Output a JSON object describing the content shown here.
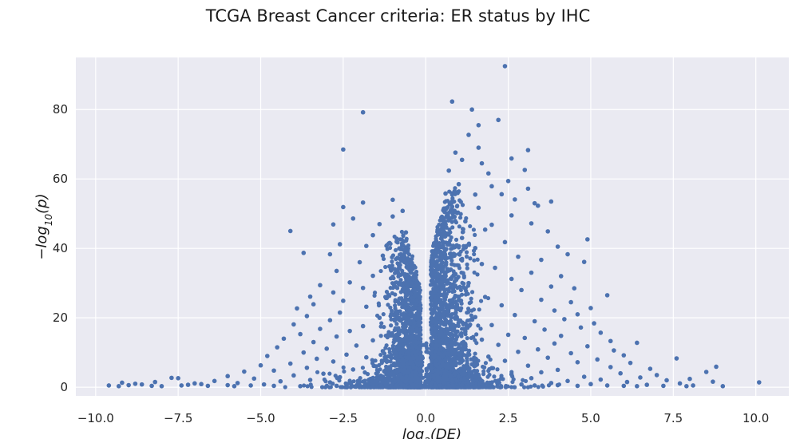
{
  "chart_data": {
    "type": "scatter",
    "title": "TCGA Breast Cancer criteria: ER status by IHC",
    "xlabel": "log2(DE)",
    "ylabel": "−log10(p)",
    "xlim": [
      -10.6,
      11.0
    ],
    "ylim": [
      -2.5,
      95
    ],
    "x_ticks": [
      -10.0,
      -7.5,
      -5.0,
      -2.5,
      0.0,
      2.5,
      5.0,
      7.5,
      10.0
    ],
    "x_tick_labels": [
      "−10.0",
      "−7.5",
      "−5.0",
      "−2.5",
      "0.0",
      "2.5",
      "5.0",
      "7.5",
      "10.0"
    ],
    "y_ticks": [
      0,
      20,
      40,
      60,
      80
    ],
    "y_tick_labels": [
      "0",
      "20",
      "40",
      "60",
      "80"
    ],
    "grid": true,
    "style": {
      "background": "#eaeaf2",
      "grid_color": "#ffffff",
      "point_color": "#4c72b0"
    },
    "series": [
      {
        "values_note_xy": true,
        "points": [
          [
            2.4,
            92.5
          ],
          [
            0.8,
            82.3
          ],
          [
            -1.9,
            79.2
          ],
          [
            1.4,
            80.0
          ],
          [
            2.2,
            77.0
          ],
          [
            1.6,
            75.5
          ],
          [
            1.3,
            72.7
          ],
          [
            -2.5,
            68.5
          ],
          [
            1.6,
            69.0
          ],
          [
            3.1,
            68.3
          ],
          [
            0.9,
            67.6
          ],
          [
            2.6,
            65.9
          ],
          [
            1.1,
            65.5
          ],
          [
            1.7,
            64.5
          ],
          [
            3.0,
            62.6
          ],
          [
            1.9,
            61.6
          ],
          [
            0.7,
            62.4
          ],
          [
            2.5,
            59.4
          ],
          [
            1.0,
            58.5
          ],
          [
            2.0,
            57.9
          ],
          [
            2.3,
            55.6
          ],
          [
            3.1,
            57.2
          ],
          [
            0.6,
            55.8
          ],
          [
            1.5,
            55.5
          ],
          [
            2.7,
            54.1
          ],
          [
            -1.0,
            54.0
          ],
          [
            -1.9,
            53.2
          ],
          [
            3.8,
            53.5
          ],
          [
            3.3,
            53.0
          ],
          [
            3.4,
            52.3
          ],
          [
            0.8,
            52.0
          ],
          [
            1.6,
            51.7
          ],
          [
            -2.5,
            51.9
          ],
          [
            -0.7,
            50.8
          ],
          [
            -1.0,
            49.2
          ],
          [
            2.6,
            49.5
          ],
          [
            -2.2,
            48.6
          ],
          [
            3.2,
            47.2
          ],
          [
            1.2,
            47.8
          ],
          [
            -1.4,
            47.0
          ],
          [
            0.5,
            46.3
          ],
          [
            -2.8,
            46.9
          ],
          [
            2.0,
            46.8
          ],
          [
            1.8,
            45.4
          ],
          [
            -4.1,
            45.0
          ],
          [
            3.7,
            44.9
          ],
          [
            -0.6,
            44.6
          ],
          [
            -1.6,
            43.8
          ],
          [
            4.9,
            42.6
          ],
          [
            1.1,
            43.0
          ],
          [
            -2.6,
            41.2
          ],
          [
            2.4,
            41.8
          ],
          [
            -1.8,
            40.7
          ],
          [
            4.0,
            40.5
          ],
          [
            1.5,
            40.1
          ],
          [
            -0.8,
            40.0
          ],
          [
            -3.7,
            38.7
          ],
          [
            -2.9,
            38.3
          ],
          [
            4.3,
            38.3
          ],
          [
            -1.3,
            37.9
          ],
          [
            2.8,
            37.6
          ],
          [
            0.6,
            37.0
          ],
          [
            3.5,
            36.7
          ],
          [
            4.8,
            36.1
          ],
          [
            -2.0,
            36.0
          ],
          [
            1.7,
            35.5
          ],
          [
            -1.1,
            34.8
          ],
          [
            2.1,
            34.4
          ],
          [
            -2.7,
            33.5
          ],
          [
            3.2,
            33.0
          ],
          [
            0.9,
            32.6
          ],
          [
            -1.6,
            32.1
          ],
          [
            4.1,
            32.0
          ],
          [
            2.6,
            31.2
          ],
          [
            -0.5,
            30.8
          ],
          [
            -2.3,
            30.2
          ],
          [
            1.3,
            30.0
          ],
          [
            -3.2,
            29.4
          ],
          [
            3.8,
            29.0
          ],
          [
            -1.9,
            28.6
          ],
          [
            4.5,
            28.5
          ],
          [
            2.9,
            28.0
          ],
          [
            0.7,
            27.7
          ],
          [
            -2.8,
            27.3
          ],
          [
            5.5,
            26.5
          ],
          [
            -3.5,
            26.1
          ],
          [
            1.8,
            26.0
          ],
          [
            -1.2,
            25.7
          ],
          [
            3.5,
            25.2
          ],
          [
            -2.5,
            24.9
          ],
          [
            4.4,
            24.5
          ],
          [
            0.5,
            24.3
          ],
          [
            -3.4,
            23.9
          ],
          [
            2.3,
            23.6
          ],
          [
            -1.8,
            23.2
          ],
          [
            5.0,
            22.8
          ],
          [
            -3.9,
            22.7
          ],
          [
            1.0,
            22.5
          ],
          [
            3.9,
            22.1
          ],
          [
            -0.9,
            21.9
          ],
          [
            -2.6,
            21.5
          ],
          [
            4.6,
            21.0
          ],
          [
            2.7,
            20.8
          ],
          [
            -3.6,
            20.5
          ],
          [
            1.5,
            20.2
          ],
          [
            -1.4,
            20.0
          ],
          [
            4.2,
            19.6
          ],
          [
            -2.9,
            19.3
          ],
          [
            3.3,
            19.0
          ],
          [
            -0.6,
            18.7
          ],
          [
            5.1,
            18.4
          ],
          [
            -4.0,
            18.1
          ],
          [
            2.0,
            17.9
          ],
          [
            -1.9,
            17.6
          ],
          [
            4.7,
            17.2
          ],
          [
            0.8,
            17.0
          ],
          [
            -3.2,
            16.8
          ],
          [
            3.6,
            16.6
          ],
          [
            -2.3,
            16.2
          ],
          [
            1.2,
            16.0
          ],
          [
            5.3,
            15.7
          ],
          [
            -1.1,
            15.5
          ],
          [
            -3.8,
            15.3
          ],
          [
            2.5,
            15.1
          ],
          [
            4.1,
            14.8
          ],
          [
            -2.7,
            14.6
          ],
          [
            0.6,
            14.4
          ],
          [
            3.0,
            14.2
          ],
          [
            -4.3,
            14.0
          ],
          [
            1.7,
            13.7
          ],
          [
            -1.6,
            13.5
          ],
          [
            5.6,
            13.3
          ],
          [
            6.4,
            12.8
          ],
          [
            -3.4,
            13.0
          ],
          [
            3.9,
            12.6
          ],
          [
            -0.8,
            12.4
          ],
          [
            2.2,
            12.2
          ],
          [
            -2.1,
            12.0
          ],
          [
            4.9,
            11.8
          ],
          [
            -4.5,
            11.5
          ],
          [
            1.0,
            11.3
          ],
          [
            -3.0,
            11.1
          ],
          [
            3.4,
            10.9
          ],
          [
            5.7,
            10.6
          ],
          [
            -1.3,
            10.4
          ],
          [
            2.8,
            10.2
          ],
          [
            -3.7,
            10.0
          ],
          [
            4.4,
            9.8
          ],
          [
            0.7,
            9.6
          ],
          [
            -2.4,
            9.4
          ],
          [
            6.0,
            9.2
          ],
          [
            -4.8,
            9.0
          ],
          [
            1.9,
            8.8
          ],
          [
            7.6,
            8.3
          ],
          [
            -1.8,
            8.6
          ],
          [
            3.7,
            8.5
          ],
          [
            -3.3,
            8.2
          ],
          [
            5.2,
            8.0
          ],
          [
            -0.7,
            7.8
          ],
          [
            2.4,
            7.6
          ],
          [
            -2.8,
            7.4
          ],
          [
            4.6,
            7.2
          ],
          [
            6.2,
            7.0
          ],
          [
            -4.1,
            6.8
          ],
          [
            1.4,
            6.6
          ],
          [
            8.8,
            5.9
          ],
          [
            -5.0,
            6.3
          ],
          [
            3.1,
            6.2
          ],
          [
            -1.5,
            6.0
          ],
          [
            5.6,
            5.8
          ],
          [
            -3.6,
            5.6
          ],
          [
            2.0,
            5.5
          ],
          [
            6.8,
            5.3
          ],
          [
            -2.2,
            5.1
          ],
          [
            4.0,
            5.0
          ],
          [
            -4.6,
            4.8
          ],
          [
            0.9,
            4.6
          ],
          [
            8.5,
            4.4
          ],
          [
            -5.5,
            4.5
          ],
          [
            3.5,
            4.3
          ],
          [
            -1.1,
            4.1
          ],
          [
            5.9,
            4.0
          ],
          [
            -3.1,
            3.9
          ],
          [
            2.6,
            3.7
          ],
          [
            7.0,
            3.5
          ],
          [
            -4.0,
            3.4
          ],
          [
            1.6,
            3.3
          ],
          [
            -6.0,
            3.2
          ],
          [
            4.8,
            3.0
          ],
          [
            -2.6,
            2.9
          ],
          [
            6.5,
            2.8
          ],
          [
            -7.5,
            2.6
          ],
          [
            -7.7,
            2.7
          ],
          [
            3.2,
            2.6
          ],
          [
            -5.2,
            2.5
          ],
          [
            8.0,
            2.4
          ],
          [
            -1.4,
            2.3
          ],
          [
            5.3,
            2.2
          ],
          [
            -3.5,
            2.1
          ],
          [
            7.3,
            2.0
          ],
          [
            2.2,
            1.9
          ],
          [
            -6.4,
            1.8
          ],
          [
            4.3,
            1.8
          ],
          [
            -4.4,
            1.7
          ],
          [
            8.7,
            1.6
          ],
          [
            -8.2,
            1.5
          ],
          [
            -9.2,
            1.3
          ],
          [
            10.1,
            1.4
          ],
          [
            6.1,
            1.5
          ],
          [
            -2.9,
            1.4
          ],
          [
            1.3,
            1.3
          ],
          [
            -5.7,
            1.2
          ],
          [
            3.8,
            1.2
          ],
          [
            -7.0,
            1.1
          ],
          [
            7.7,
            1.1
          ],
          [
            -8.8,
            1.0
          ],
          [
            -6.8,
            0.9
          ],
          [
            5.0,
            0.9
          ],
          [
            -4.9,
            0.8
          ],
          [
            2.9,
            0.8
          ],
          [
            -8.6,
            0.8
          ],
          [
            6.7,
            0.7
          ],
          [
            -9.6,
            0.5
          ],
          [
            -9.0,
            0.6
          ],
          [
            -7.2,
            0.7
          ],
          [
            -8.3,
            0.4
          ],
          [
            -6.0,
            0.6
          ],
          [
            -5.3,
            0.5
          ],
          [
            -9.3,
            0.3
          ],
          [
            -8.0,
            0.3
          ],
          [
            -7.4,
            0.5
          ],
          [
            -6.6,
            0.4
          ],
          [
            -5.8,
            0.3
          ],
          [
            -4.6,
            0.4
          ],
          [
            -3.8,
            0.3
          ],
          [
            -2.0,
            0.5
          ],
          [
            -0.3,
            0.4
          ],
          [
            0.3,
            0.5
          ],
          [
            1.1,
            0.6
          ],
          [
            2.0,
            0.4
          ],
          [
            3.3,
            0.5
          ],
          [
            4.6,
            0.4
          ],
          [
            5.5,
            0.5
          ],
          [
            6.4,
            0.3
          ],
          [
            7.2,
            0.4
          ],
          [
            8.1,
            0.5
          ],
          [
            9.0,
            0.3
          ],
          [
            -1.2,
            0.6
          ],
          [
            -2.7,
            0.4
          ],
          [
            4.0,
            0.6
          ],
          [
            6.0,
            0.4
          ],
          [
            7.9,
            0.3
          ]
        ]
      }
    ]
  }
}
